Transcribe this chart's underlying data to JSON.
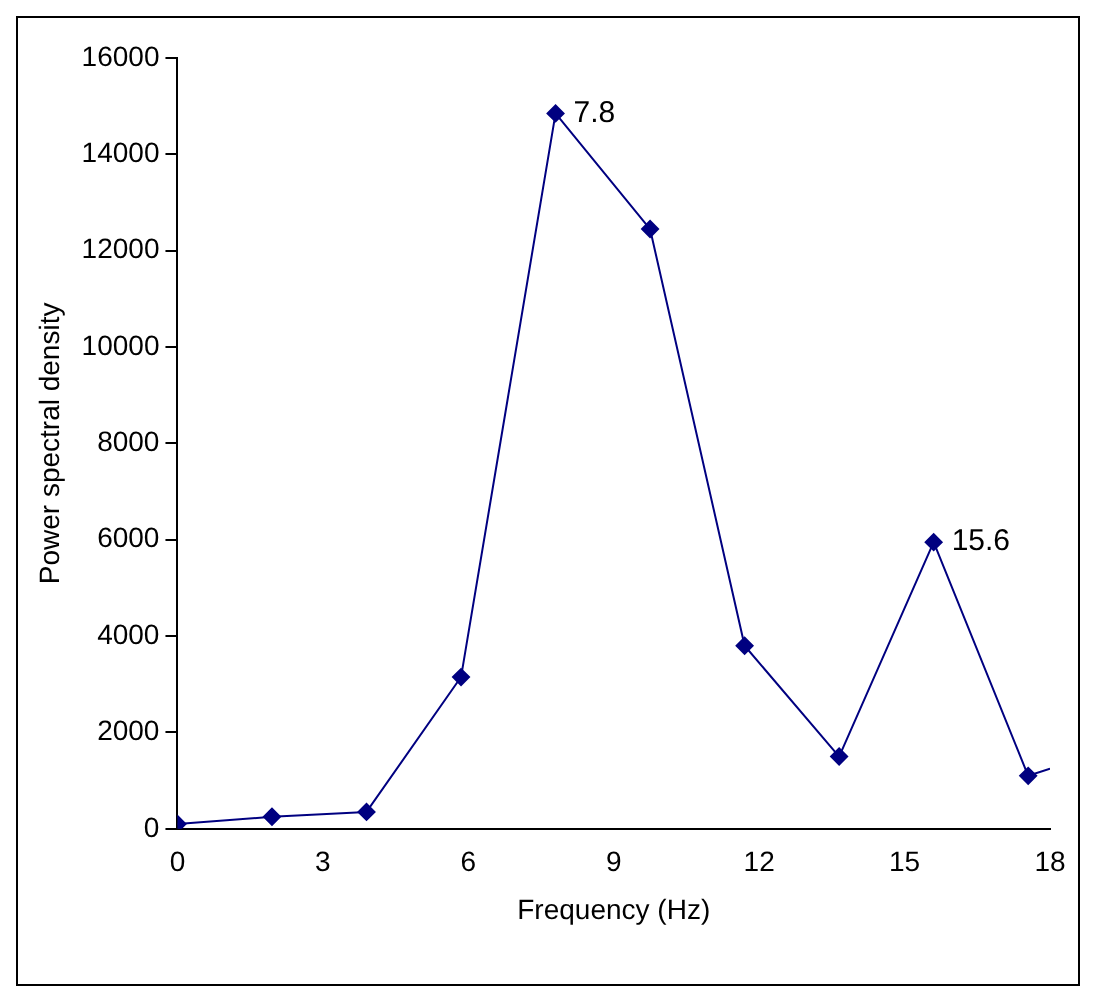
{
  "chart_data": {
    "type": "line",
    "xlabel": "Frequency (Hz)",
    "ylabel": "Power spectral density",
    "x": [
      0,
      1.95,
      3.9,
      5.85,
      7.8,
      9.75,
      11.7,
      13.65,
      15.6,
      17.55,
      18
    ],
    "series": [
      {
        "color": "#000080",
        "values": [
          100,
          250,
          350,
          3150,
          14850,
          12450,
          3800,
          1500,
          5950,
          1100,
          1250
        ]
      }
    ],
    "xlim": [
      0,
      18
    ],
    "xticks": [
      0,
      3,
      6,
      9,
      12,
      15,
      18
    ],
    "ylim": [
      0,
      16000
    ],
    "yticks": [
      0,
      2000,
      4000,
      6000,
      8000,
      10000,
      12000,
      14000,
      16000
    ],
    "grid": false,
    "legend": false,
    "marker": "diamond",
    "line_style": "solid",
    "annotations": [
      {
        "text": "7.8",
        "x": 7.8,
        "y": 14850
      },
      {
        "text": "15.6",
        "x": 15.6,
        "y": 5950
      }
    ]
  }
}
